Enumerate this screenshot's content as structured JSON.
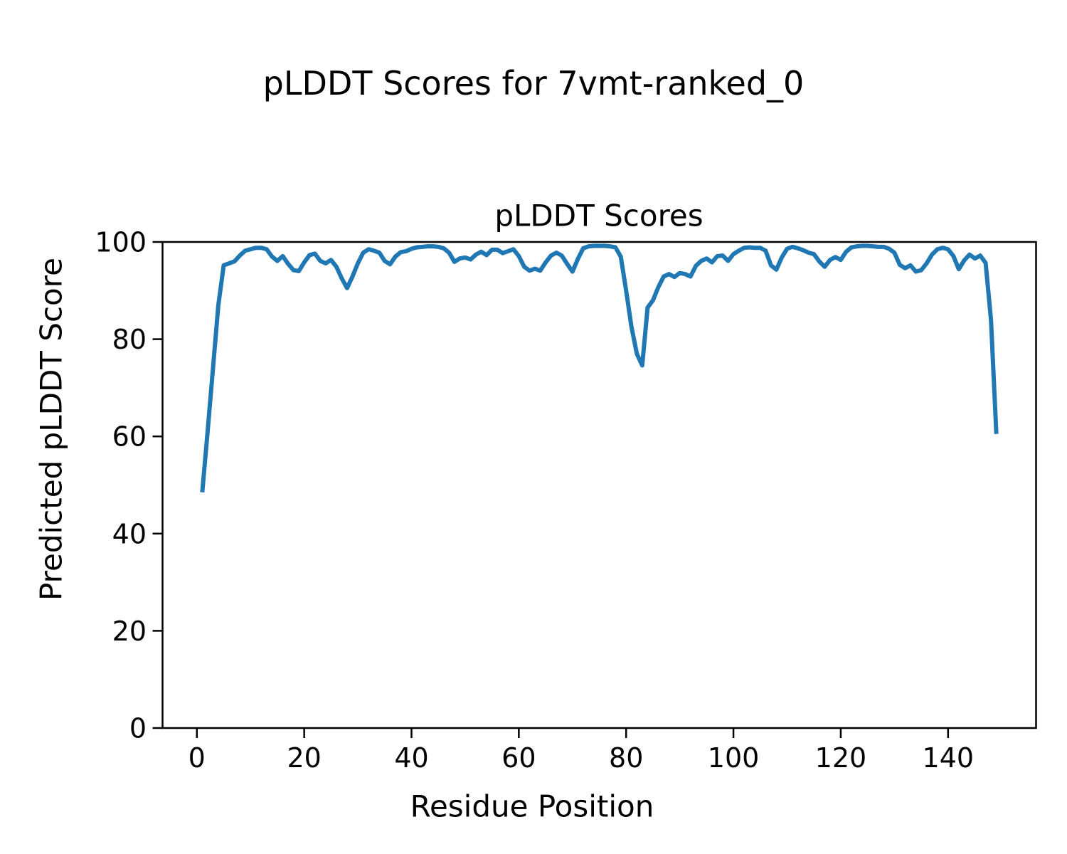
{
  "figure": {
    "suptitle": "pLDDT Scores for 7vmt-ranked_0",
    "background_color": "#ffffff",
    "text_color": "#000000"
  },
  "chart_data": {
    "type": "line",
    "title": "pLDDT Scores",
    "xlabel": "Residue Position",
    "ylabel": "Predicted pLDDT Score",
    "legend": null,
    "grid": false,
    "xlim": [
      -6.4,
      156.4
    ],
    "ylim": [
      0,
      100
    ],
    "x_ticks": [
      0,
      20,
      40,
      60,
      80,
      100,
      120,
      140
    ],
    "y_ticks": [
      0,
      20,
      40,
      60,
      80,
      100
    ],
    "line_color": "#1f77b4",
    "line_width": 6,
    "series_name": "pLDDT",
    "x": [
      1,
      2,
      3,
      4,
      5,
      6,
      7,
      8,
      9,
      10,
      11,
      12,
      13,
      14,
      15,
      16,
      17,
      18,
      19,
      20,
      21,
      22,
      23,
      24,
      25,
      26,
      27,
      28,
      29,
      30,
      31,
      32,
      33,
      34,
      35,
      36,
      37,
      38,
      39,
      40,
      41,
      42,
      43,
      44,
      45,
      46,
      47,
      48,
      49,
      50,
      51,
      52,
      53,
      54,
      55,
      56,
      57,
      58,
      59,
      60,
      61,
      62,
      63,
      64,
      65,
      66,
      67,
      68,
      69,
      70,
      71,
      72,
      73,
      74,
      75,
      76,
      77,
      78,
      79,
      80,
      81,
      82,
      83,
      84,
      85,
      86,
      87,
      88,
      89,
      90,
      91,
      92,
      93,
      94,
      95,
      96,
      97,
      98,
      99,
      100,
      101,
      102,
      103,
      104,
      105,
      106,
      107,
      108,
      109,
      110,
      111,
      112,
      113,
      114,
      115,
      116,
      117,
      118,
      119,
      120,
      121,
      122,
      123,
      124,
      125,
      126,
      127,
      128,
      129,
      130,
      131,
      132,
      133,
      134,
      135,
      136,
      137,
      138,
      139,
      140,
      141,
      142,
      143,
      144,
      145,
      146,
      147,
      148,
      149
    ],
    "y": [
      48.5,
      61.0,
      74.0,
      87.0,
      95.2,
      95.6,
      96.0,
      97.2,
      98.2,
      98.5,
      98.8,
      98.8,
      98.5,
      97.0,
      96.1,
      97.1,
      95.5,
      94.2,
      94.0,
      95.8,
      97.3,
      97.6,
      96.1,
      95.6,
      96.3,
      94.9,
      92.5,
      90.5,
      92.9,
      95.6,
      97.8,
      98.5,
      98.2,
      97.8,
      96.1,
      95.4,
      97.0,
      97.9,
      98.1,
      98.6,
      98.9,
      99.0,
      99.1,
      99.1,
      99.0,
      98.7,
      97.8,
      95.9,
      96.6,
      96.8,
      96.4,
      97.4,
      98.0,
      97.3,
      98.4,
      98.4,
      97.7,
      98.1,
      98.5,
      97.1,
      94.9,
      94.1,
      94.5,
      94.1,
      95.8,
      97.2,
      97.8,
      97.2,
      95.5,
      93.9,
      96.5,
      98.7,
      99.1,
      99.2,
      99.2,
      99.2,
      99.1,
      98.9,
      97.0,
      90.0,
      82.5,
      77.0,
      74.6,
      86.5,
      88.0,
      90.7,
      92.9,
      93.4,
      92.8,
      93.6,
      93.4,
      92.9,
      95.1,
      96.1,
      96.6,
      95.8,
      97.1,
      97.2,
      96.1,
      97.5,
      98.2,
      98.8,
      98.9,
      98.8,
      98.8,
      98.2,
      95.2,
      94.3,
      96.8,
      98.6,
      99.0,
      98.7,
      98.3,
      97.8,
      97.5,
      96.0,
      94.9,
      96.3,
      96.9,
      96.3,
      98.0,
      98.9,
      99.1,
      99.2,
      99.2,
      99.1,
      99.0,
      99.0,
      98.6,
      97.8,
      95.3,
      94.6,
      95.2,
      93.9,
      94.2,
      95.6,
      97.4,
      98.5,
      98.8,
      98.5,
      97.1,
      94.4,
      96.2,
      97.4,
      96.6,
      97.2,
      95.7,
      84.0,
      60.5
    ]
  }
}
